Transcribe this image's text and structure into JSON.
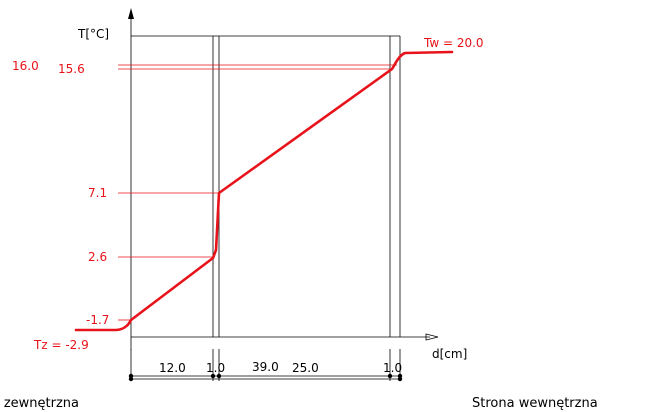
{
  "labels": {
    "y_axis": "T[°C]",
    "x_axis": "d[cm]",
    "tw": "Tw = 20.0",
    "tz": "Tz = -2.9",
    "outside": "Strona zewnętrzna",
    "inside": "Strona wewnętrzna"
  },
  "temperature_labels": [
    "16.0",
    "15.6",
    "7.1",
    "2.6",
    "-1.7"
  ],
  "layers": {
    "thickness_labels": [
      "12.0",
      "1.0",
      "25.0",
      "1.0"
    ],
    "total_label": "39.0"
  },
  "chart_data": {
    "type": "line",
    "xlabel": "d[cm]",
    "ylabel": "T[°C]",
    "profile": {
      "x": [
        0,
        12,
        13,
        38,
        39
      ],
      "y": [
        -1.7,
        2.6,
        7.1,
        15.6,
        16.0
      ]
    },
    "interfaces_cm": [
      0,
      12,
      13,
      38,
      39
    ],
    "air_temperature_outside": -2.9,
    "air_temperature_inside": 20.0
  },
  "colors": {
    "profile": "#e8131a",
    "axes": "#000000"
  }
}
